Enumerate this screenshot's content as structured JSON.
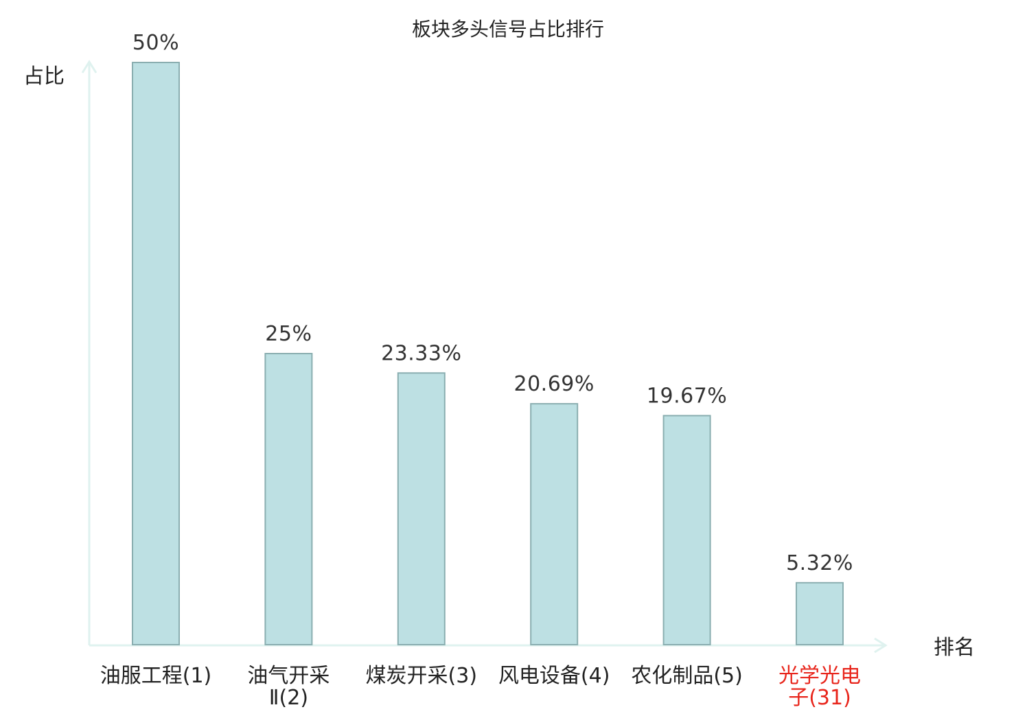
{
  "chart_data": {
    "type": "bar",
    "title": "板块多头信号占比排行",
    "ylabel": "占比",
    "xlabel": "排名",
    "categories": [
      {
        "lines": [
          "油服工程(1)"
        ],
        "highlight": false
      },
      {
        "lines": [
          "油气开采",
          "Ⅱ(2)"
        ],
        "highlight": false
      },
      {
        "lines": [
          "煤炭开采(3)"
        ],
        "highlight": false
      },
      {
        "lines": [
          "风电设备(4)"
        ],
        "highlight": false
      },
      {
        "lines": [
          "农化制品(5)"
        ],
        "highlight": false
      },
      {
        "lines": [
          "光学光电",
          "子(31)"
        ],
        "highlight": true
      }
    ],
    "values": [
      50,
      25,
      23.33,
      20.69,
      19.67,
      5.32
    ],
    "value_labels": [
      "50%",
      "25%",
      "23.33%",
      "20.69%",
      "19.67%",
      "5.32%"
    ],
    "ylim": [
      0,
      50
    ],
    "grid": false,
    "legend": "none",
    "colors": {
      "bar_fill": "#bde0e3",
      "bar_stroke": "#8aaeb0",
      "axis": "#dff2ef",
      "text": "#222222",
      "highlight": "#e8251b"
    }
  }
}
